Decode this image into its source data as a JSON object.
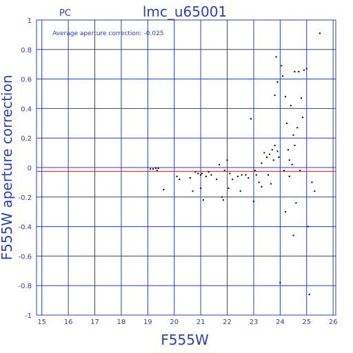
{
  "chart_data": {
    "type": "scatter",
    "title": "lmc_u65001",
    "corner_label": "PC",
    "annotation": "Average aperture correction: -0.025",
    "xlabel": "F555W",
    "ylabel": "F555W aperture correction",
    "xlim": [
      14.8,
      26.1
    ],
    "ylim": [
      -1,
      1
    ],
    "xticks": [
      "15",
      "16",
      "17",
      "18",
      "19",
      "20",
      "21",
      "22",
      "23",
      "24",
      "25",
      "26"
    ],
    "yticks": [
      "1",
      "0.8",
      "0.6",
      "0.4",
      "0.2",
      "0",
      "-0.2",
      "-0.4",
      "-0.6",
      "-0.8",
      "-1"
    ],
    "grid": true,
    "reference_lines": [
      {
        "y": 0,
        "color": "#2a3fc0"
      },
      {
        "y": -0.025,
        "color": "#c0282a"
      }
    ],
    "point_color": "#000000",
    "points": [
      [
        19.1,
        -0.01
      ],
      [
        19.2,
        -0.01
      ],
      [
        19.3,
        -0.005
      ],
      [
        19.4,
        -0.005
      ],
      [
        19.35,
        -0.02
      ],
      [
        19.6,
        -0.15
      ],
      [
        20.1,
        -0.06
      ],
      [
        20.2,
        -0.08
      ],
      [
        20.6,
        -0.07
      ],
      [
        20.7,
        -0.16
      ],
      [
        20.8,
        -0.03
      ],
      [
        20.9,
        -0.04
      ],
      [
        21.0,
        -0.14
      ],
      [
        21.0,
        -0.05
      ],
      [
        21.05,
        -0.04
      ],
      [
        21.1,
        -0.22
      ],
      [
        21.2,
        -0.06
      ],
      [
        21.3,
        -0.03
      ],
      [
        21.4,
        -0.05
      ],
      [
        21.6,
        -0.08
      ],
      [
        21.7,
        0.02
      ],
      [
        21.8,
        -0.2
      ],
      [
        21.85,
        -0.22
      ],
      [
        21.9,
        -0.02
      ],
      [
        22.0,
        0.05
      ],
      [
        22.05,
        -0.14
      ],
      [
        22.1,
        -0.04
      ],
      [
        22.2,
        -0.08
      ],
      [
        22.4,
        -0.06
      ],
      [
        22.5,
        -0.16
      ],
      [
        22.55,
        -0.05
      ],
      [
        22.7,
        -0.05
      ],
      [
        22.8,
        -0.07
      ],
      [
        22.9,
        0.33
      ],
      [
        23.0,
        -0.23
      ],
      [
        23.05,
        -0.02
      ],
      [
        23.1,
        -0.05
      ],
      [
        23.2,
        -0.1
      ],
      [
        23.3,
        -0.13
      ],
      [
        23.3,
        0.03
      ],
      [
        23.4,
        0.1
      ],
      [
        23.5,
        0.07
      ],
      [
        23.55,
        -0.05
      ],
      [
        23.6,
        0.09
      ],
      [
        23.65,
        -0.11
      ],
      [
        23.7,
        0.12
      ],
      [
        23.75,
        0.05
      ],
      [
        23.8,
        0.15
      ],
      [
        23.8,
        0.49
      ],
      [
        23.85,
        0.75
      ],
      [
        23.9,
        0.58
      ],
      [
        23.9,
        0.11
      ],
      [
        23.95,
        0.07
      ],
      [
        24.0,
        -0.78
      ],
      [
        24.05,
        0.69
      ],
      [
        24.1,
        0.62
      ],
      [
        24.15,
        -0.02
      ],
      [
        24.2,
        -0.3
      ],
      [
        24.2,
        0.48
      ],
      [
        24.25,
        0.3
      ],
      [
        24.3,
        0.12
      ],
      [
        24.35,
        0.05
      ],
      [
        24.35,
        -0.06
      ],
      [
        24.4,
        0.42
      ],
      [
        24.45,
        0.02
      ],
      [
        24.5,
        0.22
      ],
      [
        24.5,
        -0.46
      ],
      [
        24.55,
        0.65
      ],
      [
        24.55,
        0.15
      ],
      [
        24.6,
        -0.24
      ],
      [
        24.65,
        0.27
      ],
      [
        24.7,
        0.65
      ],
      [
        24.75,
        -0.02
      ],
      [
        24.8,
        0.47
      ],
      [
        24.85,
        0.34
      ],
      [
        24.9,
        0.66
      ],
      [
        25.0,
        0.67
      ],
      [
        25.05,
        -0.4
      ],
      [
        25.1,
        -0.86
      ],
      [
        25.2,
        -0.1
      ],
      [
        25.3,
        -0.16
      ],
      [
        25.5,
        0.91
      ]
    ]
  }
}
